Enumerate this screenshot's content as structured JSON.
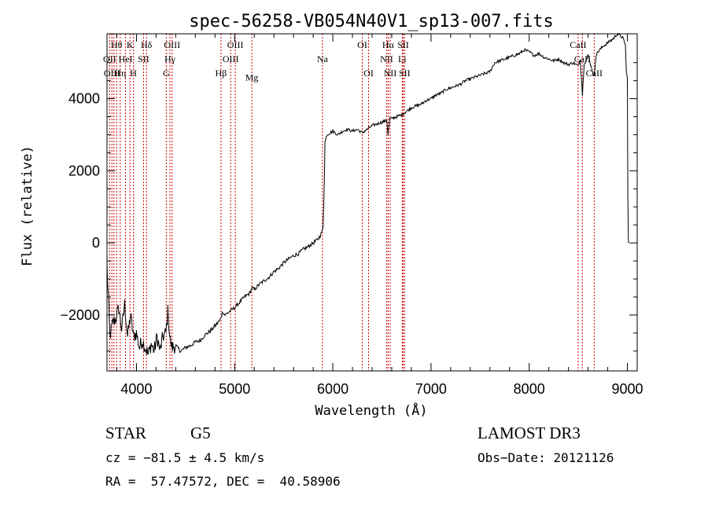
{
  "chart_data": {
    "type": "line",
    "title": "spec-56258-VB054N40V1_sp13-007.fits",
    "xlabel": "Wavelength (Å)",
    "ylabel": "Flux (relative)",
    "xlim": [
      3700,
      9100
    ],
    "ylim": [
      -3550,
      5800
    ],
    "x_ticks": [
      4000,
      5000,
      6000,
      7000,
      8000,
      9000
    ],
    "y_ticks": [
      -2000,
      0,
      2000,
      4000
    ],
    "x_tick_labels": [
      "4000",
      "5000",
      "6000",
      "7000",
      "8000",
      "9000"
    ],
    "y_tick_labels": [
      "−2000",
      "0",
      "2000",
      "4000"
    ],
    "series": [
      {
        "name": "spectrum",
        "color": "#000000",
        "points": [
          [
            3700,
            -600
          ],
          [
            3730,
            -2600
          ],
          [
            3760,
            -2200
          ],
          [
            3790,
            -2100
          ],
          [
            3820,
            -1800
          ],
          [
            3850,
            -2400
          ],
          [
            3880,
            -1700
          ],
          [
            3910,
            -2600
          ],
          [
            3940,
            -2000
          ],
          [
            3970,
            -2600
          ],
          [
            4000,
            -2500
          ],
          [
            4030,
            -2900
          ],
          [
            4060,
            -2700
          ],
          [
            4090,
            -2900
          ],
          [
            4120,
            -3100
          ],
          [
            4150,
            -2800
          ],
          [
            4180,
            -3000
          ],
          [
            4210,
            -2600
          ],
          [
            4240,
            -3000
          ],
          [
            4270,
            -2600
          ],
          [
            4300,
            -2500
          ],
          [
            4320,
            -1900
          ],
          [
            4340,
            -2600
          ],
          [
            4360,
            -2900
          ],
          [
            4400,
            -2850
          ],
          [
            4450,
            -3000
          ],
          [
            4500,
            -2900
          ],
          [
            4550,
            -2850
          ],
          [
            4600,
            -2750
          ],
          [
            4650,
            -2700
          ],
          [
            4700,
            -2550
          ],
          [
            4750,
            -2450
          ],
          [
            4800,
            -2300
          ],
          [
            4850,
            -2150
          ],
          [
            4880,
            -1900
          ],
          [
            4900,
            -2000
          ],
          [
            4950,
            -1900
          ],
          [
            5000,
            -1800
          ],
          [
            5050,
            -1650
          ],
          [
            5100,
            -1500
          ],
          [
            5150,
            -1400
          ],
          [
            5180,
            -1250
          ],
          [
            5200,
            -1300
          ],
          [
            5250,
            -1150
          ],
          [
            5300,
            -1050
          ],
          [
            5350,
            -950
          ],
          [
            5400,
            -800
          ],
          [
            5450,
            -700
          ],
          [
            5500,
            -550
          ],
          [
            5550,
            -450
          ],
          [
            5600,
            -350
          ],
          [
            5650,
            -300
          ],
          [
            5700,
            -180
          ],
          [
            5750,
            -100
          ],
          [
            5800,
            0
          ],
          [
            5850,
            100
          ],
          [
            5880,
            250
          ],
          [
            5900,
            400
          ],
          [
            5910,
            1300
          ],
          [
            5920,
            2800
          ],
          [
            5940,
            3000
          ],
          [
            5970,
            3050
          ],
          [
            6000,
            3100
          ],
          [
            6050,
            3000
          ],
          [
            6100,
            3100
          ],
          [
            6150,
            3150
          ],
          [
            6200,
            3100
          ],
          [
            6250,
            3150
          ],
          [
            6300,
            3050
          ],
          [
            6350,
            3150
          ],
          [
            6400,
            3250
          ],
          [
            6450,
            3300
          ],
          [
            6500,
            3350
          ],
          [
            6550,
            3400
          ],
          [
            6563,
            3000
          ],
          [
            6580,
            3450
          ],
          [
            6600,
            3450
          ],
          [
            6650,
            3500
          ],
          [
            6700,
            3550
          ],
          [
            6750,
            3650
          ],
          [
            6800,
            3750
          ],
          [
            6850,
            3800
          ],
          [
            6900,
            3850
          ],
          [
            6950,
            3950
          ],
          [
            7000,
            4000
          ],
          [
            7050,
            4100
          ],
          [
            7100,
            4150
          ],
          [
            7150,
            4250
          ],
          [
            7200,
            4300
          ],
          [
            7250,
            4350
          ],
          [
            7300,
            4400
          ],
          [
            7350,
            4500
          ],
          [
            7400,
            4550
          ],
          [
            7450,
            4600
          ],
          [
            7500,
            4650
          ],
          [
            7550,
            4700
          ],
          [
            7600,
            4750
          ],
          [
            7650,
            5000
          ],
          [
            7700,
            5050
          ],
          [
            7750,
            5100
          ],
          [
            7800,
            5150
          ],
          [
            7850,
            5200
          ],
          [
            7900,
            5250
          ],
          [
            7950,
            5350
          ],
          [
            8000,
            5300
          ],
          [
            8050,
            5200
          ],
          [
            8100,
            5250
          ],
          [
            8150,
            5150
          ],
          [
            8200,
            5100
          ],
          [
            8250,
            5050
          ],
          [
            8300,
            5100
          ],
          [
            8350,
            5000
          ],
          [
            8400,
            4950
          ],
          [
            8450,
            5000
          ],
          [
            8498,
            4900
          ],
          [
            8520,
            5100
          ],
          [
            8542,
            4100
          ],
          [
            8560,
            5000
          ],
          [
            8580,
            5050
          ],
          [
            8600,
            5200
          ],
          [
            8620,
            5000
          ],
          [
            8662,
            4600
          ],
          [
            8680,
            5200
          ],
          [
            8700,
            5300
          ],
          [
            8750,
            5450
          ],
          [
            8800,
            5550
          ],
          [
            8850,
            5650
          ],
          [
            8900,
            5800
          ],
          [
            8950,
            5700
          ],
          [
            8980,
            5500
          ],
          [
            8990,
            4700
          ],
          [
            9000,
            4600
          ],
          [
            9005,
            1200
          ],
          [
            9010,
            0
          ]
        ]
      }
    ],
    "lines": [
      {
        "x": 3727,
        "labels": [
          "OII"
        ]
      },
      {
        "x": 3750,
        "labels": [
          "OIII"
        ]
      },
      {
        "x": 3771,
        "labels": [
          "HeI"
        ]
      },
      {
        "x": 3798,
        "labels": [
          "Hθ"
        ]
      },
      {
        "x": 3835,
        "labels": [
          "Hη"
        ]
      },
      {
        "x": 3889,
        "labels": [
          "HeI"
        ]
      },
      {
        "x": 3934,
        "labels": [
          "K"
        ]
      },
      {
        "x": 3969,
        "labels": [
          "H"
        ]
      },
      {
        "x": 4072,
        "labels": [
          "SII"
        ]
      },
      {
        "x": 4102,
        "labels": [
          "Hδ"
        ]
      },
      {
        "x": 4304,
        "labels": [
          "G"
        ]
      },
      {
        "x": 4341,
        "labels": [
          "Hγ"
        ]
      },
      {
        "x": 4363,
        "labels": [
          "OIII"
        ]
      },
      {
        "x": 4861,
        "labels": [
          "Hβ"
        ]
      },
      {
        "x": 4959,
        "labels": [
          "OIII"
        ]
      },
      {
        "x": 5007,
        "labels": [
          "OIII"
        ]
      },
      {
        "x": 5175,
        "labels": [
          "Mg"
        ]
      },
      {
        "x": 5894,
        "labels": [
          "Na"
        ]
      },
      {
        "x": 6300,
        "labels": [
          "OI"
        ]
      },
      {
        "x": 6364,
        "labels": [
          "OI"
        ]
      },
      {
        "x": 6548,
        "labels": [
          "NII"
        ]
      },
      {
        "x": 6563,
        "labels": [
          "Hα"
        ]
      },
      {
        "x": 6584,
        "labels": [
          "NII"
        ]
      },
      {
        "x": 6707,
        "labels": [
          "Li"
        ]
      },
      {
        "x": 6716,
        "labels": [
          "SII"
        ]
      },
      {
        "x": 6731,
        "labels": [
          "SII"
        ]
      },
      {
        "x": 8498,
        "labels": [
          "CaII"
        ]
      },
      {
        "x": 8542,
        "labels": [
          "CaII"
        ]
      },
      {
        "x": 8662,
        "labels": [
          "CaII"
        ]
      }
    ],
    "line_labels": [
      {
        "text": "Hθ",
        "x": 3798,
        "row": 1
      },
      {
        "text": "K",
        "x": 3934,
        "row": 1
      },
      {
        "text": "Hδ",
        "x": 4102,
        "row": 1
      },
      {
        "text": "OIII",
        "x": 4363,
        "row": 1
      },
      {
        "text": "OIII",
        "x": 5007,
        "row": 1
      },
      {
        "text": "OI",
        "x": 6300,
        "row": 1
      },
      {
        "text": "Hα",
        "x": 6563,
        "row": 1
      },
      {
        "text": "SII",
        "x": 6716,
        "row": 1
      },
      {
        "text": "CaII",
        "x": 8498,
        "row": 1
      },
      {
        "text": "OII",
        "x": 3727,
        "row": 2
      },
      {
        "text": "HeI",
        "x": 3889,
        "row": 2
      },
      {
        "text": "SII",
        "x": 4072,
        "row": 2
      },
      {
        "text": "Hγ",
        "x": 4341,
        "row": 2
      },
      {
        "text": "OIII",
        "x": 4959,
        "row": 2
      },
      {
        "text": "Na",
        "x": 5894,
        "row": 2
      },
      {
        "text": "NII",
        "x": 6548,
        "row": 2
      },
      {
        "text": "Li",
        "x": 6707,
        "row": 2
      },
      {
        "text": "CaII",
        "x": 8542,
        "row": 2
      },
      {
        "text": "OIII",
        "x": 3750,
        "row": 3
      },
      {
        "text": "Hη",
        "x": 3835,
        "row": 3
      },
      {
        "text": "H",
        "x": 3969,
        "row": 3
      },
      {
        "text": "G",
        "x": 4304,
        "row": 3
      },
      {
        "text": "Hβ",
        "x": 4861,
        "row": 3
      },
      {
        "text": "Mg",
        "x": 5175,
        "row": 3.3
      },
      {
        "text": "OI",
        "x": 6364,
        "row": 3
      },
      {
        "text": "NII",
        "x": 6584,
        "row": 3
      },
      {
        "text": "SII",
        "x": 6731,
        "row": 3
      },
      {
        "text": "CaII",
        "x": 8662,
        "row": 3
      }
    ],
    "colors": {
      "spectrum": "#000000",
      "lines": "#cc0000",
      "axes": "#000000"
    }
  },
  "info": {
    "object_class": "STAR",
    "subclass": "G5",
    "survey": "LAMOST DR3",
    "redshift": "cz = −81.5 ± 4.5 km/s",
    "obs_date": "Obs−Date: 20121126",
    "coords": "RA =  57.47572, DEC =  40.58906"
  }
}
